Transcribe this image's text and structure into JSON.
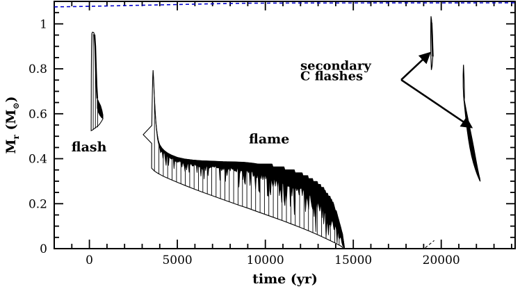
{
  "figure": {
    "background": "#ffffff",
    "frame_color": "#000000",
    "text_color": "#000000",
    "dashed_line_color": "#0000cd"
  },
  "chart_data": {
    "type": "line",
    "title": "",
    "xlabel": "time (yr)",
    "ylabel_parts": {
      "base": "M",
      "base_sub": "r",
      "paren": " (M",
      "paren_sub": "⊙",
      "close": ")"
    },
    "xlim": [
      -2000,
      24200
    ],
    "ylim": [
      0,
      1.1
    ],
    "xticks_major": [
      0,
      5000,
      10000,
      15000,
      20000
    ],
    "xtick_labels": [
      "0",
      "5000",
      "10000",
      "15000",
      "20000"
    ],
    "xtick_minor_step": 1000,
    "yticks_major": [
      0,
      0.2,
      0.4,
      0.6,
      0.8,
      1.0
    ],
    "ytick_labels": [
      "0",
      "0.2",
      "0.4",
      "0.6",
      "0.8",
      "1"
    ],
    "ytick_minor_step": 0.05,
    "grid": false,
    "legend": "none",
    "series": {
      "total_mass_dashed": {
        "name": "total stellar mass (dashed blue)",
        "points": [
          [
            -2000,
            1.0755
          ],
          [
            0,
            1.078
          ],
          [
            2500,
            1.082
          ],
          [
            5000,
            1.086
          ],
          [
            7500,
            1.09
          ],
          [
            9000,
            1.092
          ],
          [
            12000,
            1.093
          ],
          [
            24200,
            1.0935
          ]
        ]
      },
      "flash": {
        "name": "H/He flash convective region",
        "outline": [
          [
            100,
            0.525
          ],
          [
            103,
            0.62
          ],
          [
            108,
            0.75
          ],
          [
            118,
            0.88
          ],
          [
            135,
            0.955
          ],
          [
            175,
            0.963
          ],
          [
            240,
            0.962
          ],
          [
            290,
            0.952
          ],
          [
            330,
            0.9
          ],
          [
            370,
            0.8
          ],
          [
            405,
            0.72
          ],
          [
            445,
            0.668
          ],
          [
            520,
            0.648
          ],
          [
            600,
            0.63
          ],
          [
            690,
            0.61
          ],
          [
            770,
            0.578
          ],
          [
            690,
            0.567
          ],
          [
            560,
            0.552
          ],
          [
            420,
            0.542
          ],
          [
            280,
            0.534
          ],
          [
            160,
            0.527
          ],
          [
            100,
            0.525
          ]
        ],
        "right_edge": [
          [
            290,
            0.952
          ],
          [
            330,
            0.9
          ],
          [
            370,
            0.8
          ],
          [
            405,
            0.72
          ],
          [
            445,
            0.668
          ]
        ],
        "knee_fill": [
          [
            445,
            0.668
          ],
          [
            540,
            0.652
          ],
          [
            640,
            0.636
          ],
          [
            720,
            0.615
          ],
          [
            770,
            0.595
          ],
          [
            770,
            0.578
          ],
          [
            700,
            0.582
          ],
          [
            600,
            0.592
          ],
          [
            510,
            0.606
          ],
          [
            445,
            0.625
          ]
        ],
        "hatch_lines": [
          [
            215,
            0.528,
            0.955
          ],
          [
            345,
            0.535,
            0.86
          ],
          [
            470,
            0.54,
            0.64
          ]
        ]
      },
      "flame": {
        "name": "C-burning flame convective region",
        "outline_left": [
          [
            3536,
            0.358
          ],
          [
            3539,
            0.43
          ],
          [
            3540,
            0.468
          ],
          [
            3060,
            0.507
          ],
          [
            3548,
            0.548
          ],
          [
            3558,
            0.6
          ],
          [
            3578,
            0.7
          ],
          [
            3600,
            0.762
          ],
          [
            3618,
            0.794
          ]
        ],
        "band_top": [
          [
            3618,
            0.794
          ],
          [
            3650,
            0.752
          ],
          [
            3680,
            0.7
          ],
          [
            3710,
            0.648
          ],
          [
            3745,
            0.6
          ],
          [
            3790,
            0.553
          ],
          [
            3850,
            0.512
          ],
          [
            3920,
            0.48
          ],
          [
            4000,
            0.462
          ],
          [
            4120,
            0.447
          ],
          [
            4260,
            0.436
          ],
          [
            4450,
            0.425
          ],
          [
            4700,
            0.415
          ],
          [
            5000,
            0.406
          ],
          [
            5400,
            0.399
          ],
          [
            5900,
            0.394
          ],
          [
            6400,
            0.391
          ],
          [
            7000,
            0.389
          ],
          [
            7600,
            0.387
          ],
          [
            8200,
            0.386
          ],
          [
            8800,
            0.384
          ],
          [
            9300,
            0.38
          ],
          [
            9800,
            0.374
          ],
          [
            10300,
            0.366
          ],
          [
            10800,
            0.357
          ],
          [
            11300,
            0.347
          ],
          [
            11800,
            0.335
          ],
          [
            12250,
            0.32
          ],
          [
            12650,
            0.303
          ],
          [
            13000,
            0.284
          ],
          [
            13300,
            0.262
          ],
          [
            13600,
            0.232
          ],
          [
            13850,
            0.196
          ],
          [
            14080,
            0.15
          ],
          [
            14280,
            0.095
          ],
          [
            14430,
            0.04
          ],
          [
            14500,
            0.004
          ]
        ],
        "lower": [
          [
            3536,
            0.358
          ],
          [
            3700,
            0.345
          ],
          [
            3900,
            0.335
          ],
          [
            4200,
            0.322
          ],
          [
            4600,
            0.308
          ],
          [
            5000,
            0.295
          ],
          [
            5500,
            0.279
          ],
          [
            6000,
            0.264
          ],
          [
            6500,
            0.249
          ],
          [
            7000,
            0.235
          ],
          [
            7500,
            0.221
          ],
          [
            8000,
            0.207
          ],
          [
            8500,
            0.193
          ],
          [
            9000,
            0.18
          ],
          [
            9500,
            0.166
          ],
          [
            10000,
            0.152
          ],
          [
            10500,
            0.138
          ],
          [
            11000,
            0.124
          ],
          [
            11500,
            0.109
          ],
          [
            12000,
            0.094
          ],
          [
            12500,
            0.078
          ],
          [
            13000,
            0.061
          ],
          [
            13500,
            0.043
          ],
          [
            14000,
            0.024
          ],
          [
            14300,
            0.011
          ],
          [
            14500,
            0.0
          ]
        ],
        "band_thickness": [
          [
            3700,
            0.008,
            0.02
          ],
          [
            4300,
            0.015,
            0.04
          ],
          [
            6000,
            0.02,
            0.05
          ],
          [
            8000,
            0.03,
            0.07
          ],
          [
            9500,
            0.045,
            0.09
          ],
          [
            11000,
            0.06,
            0.11
          ],
          [
            12500,
            0.08,
            0.13
          ],
          [
            13500,
            0.1,
            0.15
          ],
          [
            14200,
            0.06,
            0.08
          ],
          [
            14500,
            0.01,
            0.0
          ]
        ],
        "hatch_start": 3700,
        "hatch_end": 14430,
        "hatch_step": 250
      },
      "dash_mark": {
        "name": "dashed track segment",
        "points": [
          [
            19090,
            0.004
          ],
          [
            19600,
            0.036
          ]
        ]
      },
      "secondary_flash_1": {
        "name": "first secondary C flash",
        "outline": [
          [
            19440,
            0.795
          ],
          [
            19412,
            0.86
          ],
          [
            19402,
            0.94
          ],
          [
            19406,
            1.0
          ],
          [
            19420,
            1.034
          ],
          [
            19450,
            1.015
          ],
          [
            19480,
            0.955
          ],
          [
            19505,
            0.895
          ],
          [
            19520,
            0.855
          ],
          [
            19478,
            0.812
          ],
          [
            19440,
            0.795
          ]
        ],
        "right_edge": [
          [
            19450,
            1.005
          ],
          [
            19480,
            0.95
          ],
          [
            19505,
            0.89
          ],
          [
            19520,
            0.855
          ]
        ]
      },
      "secondary_flash_2": {
        "name": "second secondary C flash",
        "loop": [
          [
            21265,
            0.818
          ],
          [
            21245,
            0.772
          ],
          [
            21248,
            0.722
          ],
          [
            21270,
            0.678
          ],
          [
            21300,
            0.655
          ],
          [
            21318,
            0.672
          ],
          [
            21310,
            0.72
          ],
          [
            21290,
            0.77
          ],
          [
            21265,
            0.818
          ]
        ],
        "band_center": [
          [
            21300,
            0.662,
            15
          ],
          [
            21380,
            0.617,
            40
          ],
          [
            21470,
            0.572,
            70
          ],
          [
            21560,
            0.528,
            95
          ],
          [
            21650,
            0.487,
            110
          ],
          [
            21740,
            0.448,
            115
          ],
          [
            21830,
            0.412,
            110
          ],
          [
            21920,
            0.38,
            95
          ],
          [
            22010,
            0.352,
            75
          ],
          [
            22090,
            0.33,
            55
          ],
          [
            22160,
            0.313,
            35
          ],
          [
            22210,
            0.3,
            12
          ]
        ]
      }
    },
    "annotations": [
      {
        "id": "flash-label",
        "text": "flash",
        "t": -20,
        "M": 0.432,
        "align": "middle",
        "size": 19
      },
      {
        "id": "flame-label",
        "text": "flame",
        "t": 10220,
        "M": 0.468,
        "align": "middle",
        "size": 19
      },
      {
        "id": "secondary-label",
        "lines": [
          "secondary",
          "C flashes"
        ],
        "t": 11990,
        "M": 0.796,
        "align": "start",
        "size": 18,
        "line_gap": 0.0465
      }
    ],
    "arrows": [
      {
        "from": [
          17725,
          0.751
        ],
        "to": [
          19345,
          0.87
        ]
      },
      {
        "from": [
          17725,
          0.751
        ],
        "to": [
          21715,
          0.54
        ]
      }
    ]
  }
}
